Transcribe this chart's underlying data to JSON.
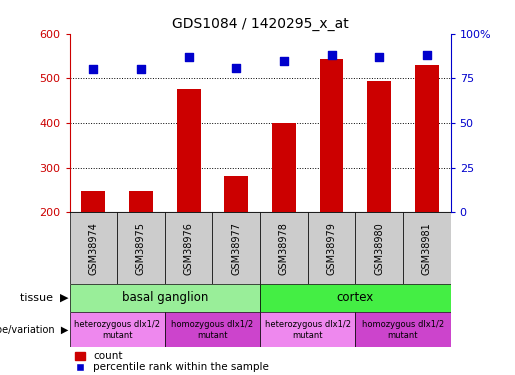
{
  "title": "GDS1084 / 1420295_x_at",
  "samples": [
    "GSM38974",
    "GSM38975",
    "GSM38976",
    "GSM38977",
    "GSM38978",
    "GSM38979",
    "GSM38980",
    "GSM38981"
  ],
  "counts": [
    248,
    248,
    477,
    282,
    401,
    544,
    494,
    530
  ],
  "percentiles": [
    80,
    80,
    87,
    81,
    85,
    88,
    87,
    88
  ],
  "ylim_left": [
    200,
    600
  ],
  "ylim_right": [
    0,
    100
  ],
  "yticks_left": [
    200,
    300,
    400,
    500,
    600
  ],
  "yticks_right": [
    0,
    25,
    50,
    75,
    100
  ],
  "ytick_right_labels": [
    "0",
    "25",
    "50",
    "75",
    "100%"
  ],
  "bar_color": "#cc0000",
  "dot_color": "#0000cc",
  "tissue_groups": [
    {
      "label": "basal ganglion",
      "start": 0,
      "end": 4,
      "color": "#99ee99"
    },
    {
      "label": "cortex",
      "start": 4,
      "end": 8,
      "color": "#44ee44"
    }
  ],
  "genotype_groups": [
    {
      "label": "heterozygous dlx1/2\nmutant",
      "start": 0,
      "end": 2,
      "color": "#ee88ee"
    },
    {
      "label": "homozygous dlx1/2\nmutant",
      "start": 2,
      "end": 4,
      "color": "#cc44cc"
    },
    {
      "label": "heterozygous dlx1/2\nmutant",
      "start": 4,
      "end": 6,
      "color": "#ee88ee"
    },
    {
      "label": "homozygous dlx1/2\nmutant",
      "start": 6,
      "end": 8,
      "color": "#cc44cc"
    }
  ],
  "left_axis_color": "#cc0000",
  "right_axis_color": "#0000cc",
  "sample_box_color": "#cccccc",
  "legend_items": [
    {
      "color": "#cc0000",
      "marker": "s",
      "label": "count"
    },
    {
      "color": "#0000cc",
      "marker": "s",
      "label": "percentile rank within the sample"
    }
  ]
}
